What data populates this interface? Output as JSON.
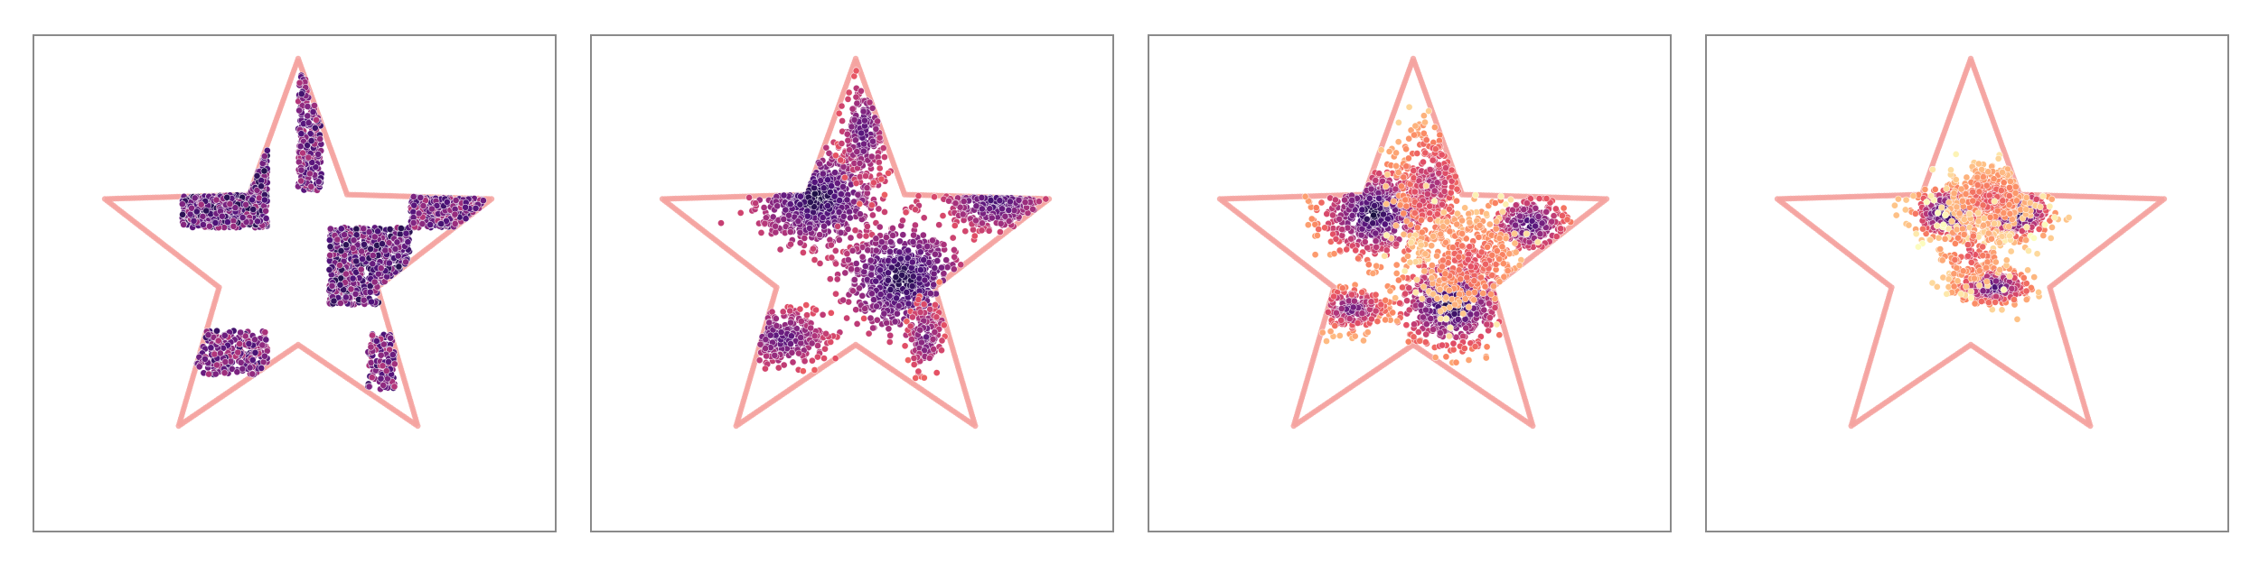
{
  "chart_data": [
    {
      "type": "scatter",
      "title": "",
      "xlabel": "",
      "ylabel": "",
      "boundary_shape": "five-pointed star",
      "boundary_color": "#f4a3a0",
      "points_colormap": "magma",
      "point_clusters": [
        {
          "kind": "rect",
          "x": [
            0.2,
            0.42
          ],
          "y": [
            0.54,
            0.75
          ],
          "n": 700,
          "c": [
            0.15,
            0.45
          ]
        },
        {
          "kind": "rect",
          "x": [
            0.58,
            0.79
          ],
          "y": [
            0.33,
            0.54
          ],
          "n": 700,
          "c": [
            0.15,
            0.45
          ]
        },
        {
          "kind": "rect",
          "x": [
            0.79,
            0.98
          ],
          "y": [
            0.54,
            0.64
          ],
          "n": 320,
          "c": [
            0.2,
            0.5
          ]
        },
        {
          "kind": "rect",
          "x": [
            0.5,
            0.56
          ],
          "y": [
            0.64,
            0.96
          ],
          "n": 220,
          "c": [
            0.2,
            0.5
          ]
        },
        {
          "kind": "rect",
          "x": [
            0.22,
            0.42
          ],
          "y": [
            0.14,
            0.26
          ],
          "n": 240,
          "c": [
            0.2,
            0.5
          ]
        },
        {
          "kind": "rect",
          "x": [
            0.68,
            0.75
          ],
          "y": [
            0.1,
            0.25
          ],
          "n": 120,
          "c": [
            0.2,
            0.5
          ]
        }
      ],
      "total_points": 2300
    },
    {
      "type": "scatter",
      "title": "",
      "boundary_shape": "five-pointed star",
      "boundary_color": "#f4a3a0",
      "points_colormap": "magma",
      "point_clusters": [
        {
          "kind": "blob",
          "cx": 0.4,
          "cy": 0.62,
          "sx": 0.07,
          "sy": 0.06,
          "n": 650,
          "c": [
            0.12,
            0.55
          ]
        },
        {
          "kind": "blob",
          "cx": 0.62,
          "cy": 0.4,
          "sx": 0.07,
          "sy": 0.07,
          "n": 650,
          "c": [
            0.12,
            0.55
          ]
        },
        {
          "kind": "blob",
          "cx": 0.86,
          "cy": 0.61,
          "sx": 0.06,
          "sy": 0.035,
          "n": 280,
          "c": [
            0.2,
            0.6
          ]
        },
        {
          "kind": "blob",
          "cx": 0.52,
          "cy": 0.8,
          "sx": 0.03,
          "sy": 0.07,
          "n": 200,
          "c": [
            0.25,
            0.65
          ]
        },
        {
          "kind": "blob",
          "cx": 0.31,
          "cy": 0.24,
          "sx": 0.06,
          "sy": 0.04,
          "n": 230,
          "c": [
            0.25,
            0.65
          ]
        },
        {
          "kind": "blob",
          "cx": 0.68,
          "cy": 0.24,
          "sx": 0.025,
          "sy": 0.05,
          "n": 120,
          "c": [
            0.3,
            0.7
          ]
        }
      ],
      "total_points": 2130
    },
    {
      "type": "scatter",
      "title": "",
      "boundary_shape": "five-pointed star",
      "boundary_color": "#f4a3a0",
      "points_colormap": "magma",
      "point_clusters": [
        {
          "kind": "blob",
          "cx": 0.4,
          "cy": 0.58,
          "sx": 0.07,
          "sy": 0.06,
          "n": 550,
          "c": [
            0.1,
            0.8
          ]
        },
        {
          "kind": "blob",
          "cx": 0.6,
          "cy": 0.33,
          "sx": 0.07,
          "sy": 0.06,
          "n": 550,
          "c": [
            0.1,
            0.8
          ]
        },
        {
          "kind": "blob",
          "cx": 0.8,
          "cy": 0.55,
          "sx": 0.05,
          "sy": 0.04,
          "n": 260,
          "c": [
            0.2,
            0.8
          ]
        },
        {
          "kind": "blob",
          "cx": 0.55,
          "cy": 0.66,
          "sx": 0.05,
          "sy": 0.08,
          "n": 350,
          "c": [
            0.45,
            0.9
          ]
        },
        {
          "kind": "blob",
          "cx": 0.34,
          "cy": 0.32,
          "sx": 0.05,
          "sy": 0.03,
          "n": 200,
          "c": [
            0.3,
            0.85
          ]
        },
        {
          "kind": "blob",
          "cx": 0.65,
          "cy": 0.45,
          "sx": 0.07,
          "sy": 0.07,
          "n": 300,
          "c": [
            0.6,
            0.95
          ]
        }
      ],
      "total_points": 2210
    },
    {
      "type": "scatter",
      "title": "",
      "boundary_shape": "five-pointed star",
      "boundary_color": "#f4a3a0",
      "points_colormap": "magma",
      "point_clusters": [
        {
          "kind": "blob",
          "cx": 0.44,
          "cy": 0.58,
          "sx": 0.045,
          "sy": 0.035,
          "n": 300,
          "c": [
            0.1,
            0.9
          ]
        },
        {
          "kind": "blob",
          "cx": 0.62,
          "cy": 0.58,
          "sx": 0.045,
          "sy": 0.035,
          "n": 320,
          "c": [
            0.1,
            0.9
          ]
        },
        {
          "kind": "blob",
          "cx": 0.56,
          "cy": 0.38,
          "sx": 0.05,
          "sy": 0.025,
          "n": 260,
          "c": [
            0.2,
            0.9
          ]
        },
        {
          "kind": "blob",
          "cx": 0.55,
          "cy": 0.62,
          "sx": 0.06,
          "sy": 0.05,
          "n": 350,
          "c": [
            0.6,
            0.98
          ]
        },
        {
          "kind": "blob",
          "cx": 0.5,
          "cy": 0.47,
          "sx": 0.05,
          "sy": 0.05,
          "n": 150,
          "c": [
            0.6,
            0.98
          ]
        }
      ],
      "total_points": 1380
    }
  ]
}
